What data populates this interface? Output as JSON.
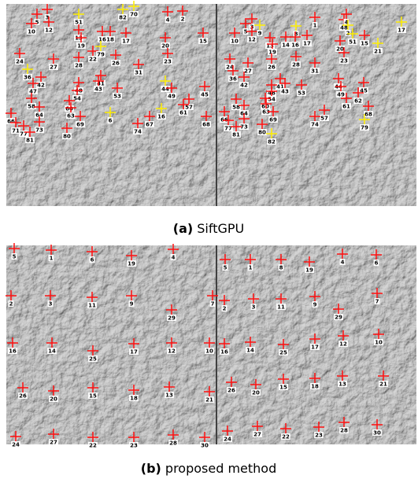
{
  "panels": [
    {
      "caption_label": "(a)",
      "caption_text": "SiftGPU",
      "images": [
        {
          "points": [
            "3",
            "5",
            "10",
            "12",
            "82",
            "70",
            "4",
            "2",
            "51",
            "13",
            "19",
            "18",
            "16",
            "17",
            "22",
            "79",
            "20",
            "15",
            "26",
            "28",
            "27",
            "24",
            "36",
            "42",
            "47",
            "31",
            "23",
            "48",
            "54",
            "41",
            "43",
            "53",
            "44",
            "49",
            "57",
            "61",
            "45",
            "58",
            "60",
            "63",
            "64",
            "66",
            "71",
            "77",
            "73",
            "81",
            "80",
            "69",
            "6",
            "16",
            "74",
            "67",
            "68"
          ]
        },
        {
          "points": [
            "1",
            "3",
            "5",
            "10",
            "12",
            "9",
            "8",
            "48",
            "4",
            "2",
            "51",
            "15",
            "21",
            "17",
            "13",
            "19",
            "14",
            "16",
            "17",
            "20",
            "23",
            "24",
            "27",
            "26",
            "28",
            "31",
            "36",
            "42",
            "44",
            "49",
            "45",
            "53",
            "41",
            "48",
            "54",
            "43",
            "58",
            "64",
            "66",
            "77",
            "73",
            "81",
            "60",
            "63",
            "69",
            "80",
            "82",
            "57",
            "74",
            "61",
            "62",
            "68",
            "79"
          ]
        }
      ]
    },
    {
      "caption_label": "(b)",
      "caption_text": "proposed method",
      "images": [
        {
          "points": [
            "5",
            "1",
            "6",
            "19",
            "4",
            "2",
            "3",
            "11",
            "9",
            "7",
            "29",
            "16",
            "14",
            "25",
            "17",
            "12",
            "10",
            "26",
            "20",
            "15",
            "18",
            "13",
            "21",
            "24",
            "27",
            "22",
            "23",
            "28",
            "30"
          ]
        },
        {
          "points": [
            "5",
            "1",
            "8",
            "19",
            "4",
            "6",
            "2",
            "3",
            "11",
            "9",
            "7",
            "29",
            "16",
            "14",
            "25",
            "17",
            "12",
            "10",
            "26",
            "20",
            "15",
            "18",
            "13",
            "21",
            "24",
            "27",
            "22",
            "23",
            "28",
            "30"
          ]
        }
      ]
    }
  ]
}
